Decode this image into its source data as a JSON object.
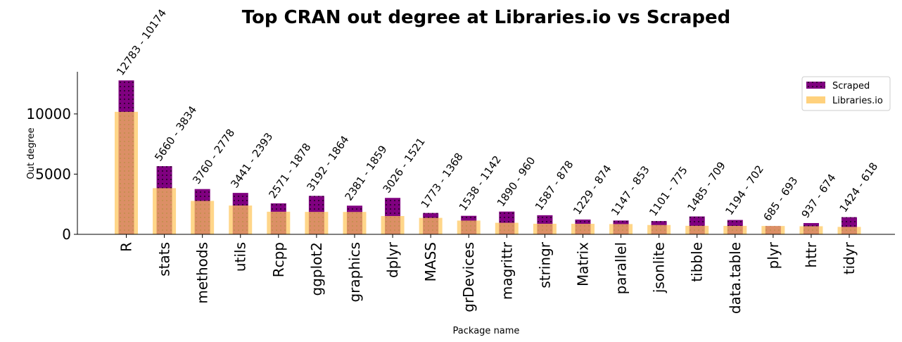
{
  "chart_data": {
    "type": "bar",
    "title": "Top CRAN out degree at Libraries.io vs Scraped",
    "xlabel": "Package name",
    "ylabel": "Out degree",
    "ylim": [
      0,
      13500
    ],
    "yticks": [
      0,
      5000,
      10000
    ],
    "categories": [
      "R",
      "stats",
      "methods",
      "utils",
      "Rcpp",
      "ggplot2",
      "graphics",
      "dplyr",
      "MASS",
      "grDevices",
      "magrittr",
      "stringr",
      "Matrix",
      "parallel",
      "jsonlite",
      "tibble",
      "data.table",
      "plyr",
      "httr",
      "tidyr"
    ],
    "series": [
      {
        "name": "Scraped",
        "color": "#800080",
        "values": [
          12783,
          5660,
          3760,
          3441,
          2571,
          3192,
          2381,
          3026,
          1773,
          1538,
          1890,
          1587,
          1229,
          1147,
          1101,
          1485,
          1194,
          685,
          937,
          1424
        ]
      },
      {
        "name": "Libraries.io",
        "color": "#ffc65c",
        "values": [
          10174,
          3834,
          2778,
          2393,
          1878,
          1864,
          1859,
          1521,
          1368,
          1142,
          960,
          878,
          874,
          853,
          775,
          709,
          702,
          693,
          674,
          618
        ]
      }
    ],
    "data_labels": [
      "12783 - 10174",
      "5660 - 3834",
      "3760 - 2778",
      "3441 - 2393",
      "2571 - 1878",
      "3192 - 1864",
      "2381 - 1859",
      "3026 - 1521",
      "1773 - 1368",
      "1538 - 1142",
      "1890 - 960",
      "1587 - 878",
      "1229 - 874",
      "1147 - 853",
      "1101 - 775",
      "1485 - 709",
      "1194 - 702",
      "685 - 693",
      "937 - 674",
      "1424 - 618"
    ],
    "legend": "top-right",
    "grid": false
  }
}
